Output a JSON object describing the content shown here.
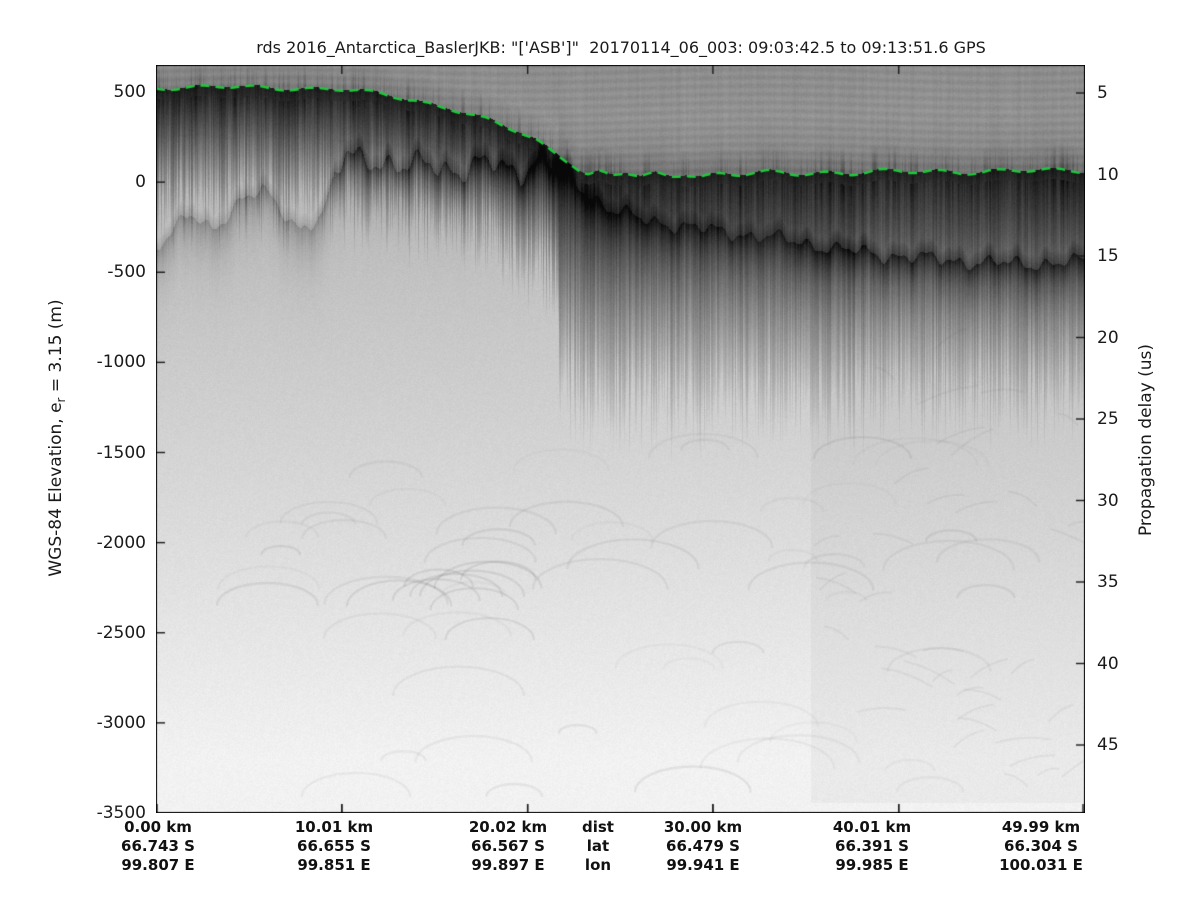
{
  "title": "rds 2016_Antarctica_BaslerJKB: \"['ASB']\"  20170114_06_003: 09:03:42.5 to 09:13:51.6 GPS",
  "chart_data": {
    "type": "heatmap",
    "description": "Grayscale ice-penetrating radar echogram (radargram) with green dashed surface pick; darker grays = stronger radar return",
    "title": "rds 2016_Antarctica_BaslerJKB: \"['ASB']\"  20170114_06_003: 09:03:42.5 to 09:13:51.6 GPS",
    "y_left": {
      "label_pre": "WGS-84 Elevation, e",
      "label_sub": "r",
      "label_post": " = 3.15 (m)",
      "ticks": [
        500,
        0,
        -500,
        -1000,
        -1500,
        -2000,
        -2500,
        -3000,
        -3500
      ],
      "range": [
        500,
        -3500
      ]
    },
    "y_right": {
      "label": "Propagation delay (us)",
      "ticks": [
        5,
        10,
        15,
        20,
        25,
        30,
        35,
        40,
        45
      ],
      "range_visible": [
        3.3,
        48.8
      ]
    },
    "x_axis": {
      "tick_km_interior": [
        10.01,
        20.02,
        30.0,
        40.01
      ],
      "tick_km_all": [
        0,
        10.01,
        20.02,
        30.0,
        40.01,
        49.99
      ],
      "range_km": [
        0,
        49.99
      ]
    },
    "bottom_axis": {
      "axis_names": [
        "dist",
        "lat",
        "lon"
      ],
      "columns": [
        {
          "dist": "0.00 km",
          "lat": "66.743 S",
          "lon": "99.807 E"
        },
        {
          "dist": "10.01 km",
          "lat": "66.655 S",
          "lon": "99.851 E"
        },
        {
          "dist": "20.02 km",
          "lat": "66.567 S",
          "lon": "99.897 E"
        },
        {
          "dist": "30.00 km",
          "lat": "66.479 S",
          "lon": "99.941 E"
        },
        {
          "dist": "40.01 km",
          "lat": "66.391 S",
          "lon": "99.985 E"
        },
        {
          "dist": "49.99 km",
          "lat": "66.304 S",
          "lon": "100.031 E"
        }
      ]
    },
    "surface_pick": {
      "color": "#1ec93c",
      "style": "dashed",
      "points_km_m": [
        [
          0,
          520
        ],
        [
          4,
          520
        ],
        [
          8,
          516
        ],
        [
          10,
          507
        ],
        [
          12,
          483
        ],
        [
          14,
          449
        ],
        [
          16,
          400
        ],
        [
          18,
          331
        ],
        [
          19.5,
          272
        ],
        [
          20.5,
          226
        ],
        [
          21.3,
          173
        ],
        [
          22,
          128
        ],
        [
          22.5,
          92
        ],
        [
          22.9,
          55
        ],
        [
          23.3,
          36
        ],
        [
          23.9,
          50
        ],
        [
          24.5,
          28
        ],
        [
          25.3,
          44
        ],
        [
          26.1,
          22
        ],
        [
          26.9,
          40
        ],
        [
          27.7,
          26
        ],
        [
          28.5,
          44
        ],
        [
          29.3,
          30
        ],
        [
          30.4,
          42
        ],
        [
          31.5,
          34
        ],
        [
          33,
          47
        ],
        [
          34.5,
          39
        ],
        [
          36,
          51
        ],
        [
          37.5,
          44
        ],
        [
          39,
          54
        ],
        [
          40.5,
          47
        ],
        [
          42,
          57
        ],
        [
          43.5,
          50
        ],
        [
          45,
          58
        ],
        [
          46.5,
          52
        ],
        [
          48,
          60
        ],
        [
          49.99,
          57
        ]
      ]
    },
    "bed_reflector": {
      "points_km_m": [
        [
          0,
          -349
        ],
        [
          1.8,
          -182
        ],
        [
          3.0,
          -260
        ],
        [
          4.5,
          -99
        ],
        [
          5.7,
          -44
        ],
        [
          6.8,
          -160
        ],
        [
          7.8,
          -254
        ],
        [
          8.9,
          -182
        ],
        [
          10.2,
          167
        ],
        [
          11.8,
          134
        ],
        [
          13.1,
          67
        ],
        [
          14.7,
          123
        ],
        [
          16.4,
          56
        ],
        [
          18.0,
          112
        ],
        [
          19.6,
          67
        ],
        [
          20.9,
          139
        ],
        [
          22.0,
          56
        ],
        [
          23.1,
          -44
        ],
        [
          24.4,
          -144
        ],
        [
          26.0,
          -199
        ],
        [
          28.2,
          -238
        ],
        [
          30.9,
          -277
        ],
        [
          33.6,
          -310
        ],
        [
          36.3,
          -360
        ],
        [
          39.0,
          -399
        ],
        [
          41.7,
          -421
        ],
        [
          44.3,
          -443
        ],
        [
          47.0,
          -449
        ],
        [
          49.99,
          -438
        ]
      ]
    }
  }
}
